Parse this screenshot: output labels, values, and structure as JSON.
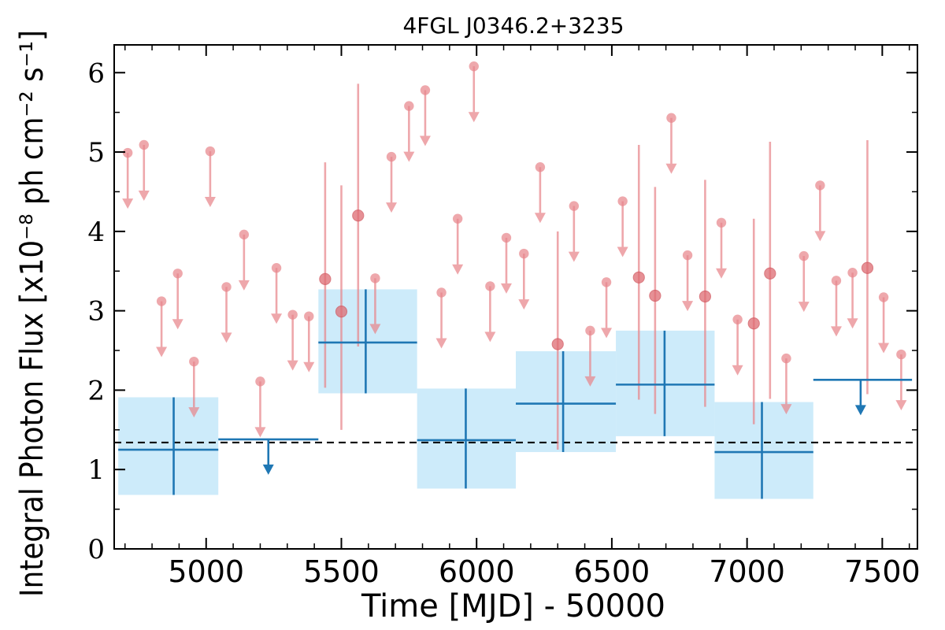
{
  "chart_data": {
    "type": "scatter",
    "title": "4FGL J0346.2+3235",
    "xlabel": "Time [MJD] - 50000",
    "ylabel": "Integral Photon Flux [x10⁻⁸ ph cm⁻² s⁻¹]",
    "xlim": [
      4660,
      7630
    ],
    "ylim": [
      0,
      6.35
    ],
    "xticks": [
      5000,
      5500,
      6000,
      6500,
      7000,
      7500
    ],
    "yticks": [
      0,
      1,
      2,
      3,
      4,
      5,
      6
    ],
    "reference_line": {
      "y": 1.34,
      "style": "dashed",
      "color": "#000000"
    },
    "colors": {
      "long_bins": "#1f77b4",
      "short_bins": "#e8868c",
      "band": "#cdebfa"
    },
    "long_bin_detections": [
      {
        "x0": 4675,
        "x1": 5045,
        "x": 4880,
        "y": 1.25,
        "ylo": 0.68,
        "yhi": 1.91
      },
      {
        "x0": 5415,
        "x1": 5780,
        "x": 5590,
        "y": 2.6,
        "ylo": 1.96,
        "yhi": 3.27
      },
      {
        "x0": 5780,
        "x1": 6145,
        "x": 5960,
        "y": 1.37,
        "ylo": 0.76,
        "yhi": 2.02
      },
      {
        "x0": 6145,
        "x1": 6515,
        "x": 6320,
        "y": 1.83,
        "ylo": 1.22,
        "yhi": 2.49
      },
      {
        "x0": 6515,
        "x1": 6880,
        "x": 6695,
        "y": 2.07,
        "ylo": 1.42,
        "yhi": 2.75
      },
      {
        "x0": 6880,
        "x1": 7245,
        "x": 7055,
        "y": 1.22,
        "ylo": 0.63,
        "yhi": 1.85
      }
    ],
    "long_bin_upper_limits": [
      {
        "x0": 5045,
        "x1": 5415,
        "x": 5230,
        "y": 1.38
      },
      {
        "x0": 7245,
        "x1": 7610,
        "x": 7420,
        "y": 2.13
      }
    ],
    "short_bin_detections": [
      {
        "x": 5440,
        "y": 3.4,
        "ylo": 2.03,
        "yhi": 4.87
      },
      {
        "x": 5500,
        "y": 2.99,
        "ylo": 1.5,
        "yhi": 4.58
      },
      {
        "x": 5562,
        "y": 4.2,
        "ylo": 2.55,
        "yhi": 5.86
      },
      {
        "x": 6300,
        "y": 2.58,
        "ylo": 1.25,
        "yhi": 4.0
      },
      {
        "x": 6600,
        "y": 3.42,
        "ylo": 1.88,
        "yhi": 5.09
      },
      {
        "x": 6660,
        "y": 3.19,
        "ylo": 1.7,
        "yhi": 4.56
      },
      {
        "x": 6845,
        "y": 3.18,
        "ylo": 1.79,
        "yhi": 4.65
      },
      {
        "x": 7025,
        "y": 2.84,
        "ylo": 1.57,
        "yhi": 4.16
      },
      {
        "x": 7085,
        "y": 3.47,
        "ylo": 1.89,
        "yhi": 5.13
      },
      {
        "x": 7445,
        "y": 3.54,
        "ylo": 1.95,
        "yhi": 5.15
      }
    ],
    "short_bin_upper_limits": [
      {
        "x": 4710,
        "y": 4.99
      },
      {
        "x": 4770,
        "y": 5.09
      },
      {
        "x": 4835,
        "y": 3.12
      },
      {
        "x": 4895,
        "y": 3.47
      },
      {
        "x": 4955,
        "y": 2.36
      },
      {
        "x": 5015,
        "y": 5.01
      },
      {
        "x": 5075,
        "y": 3.3
      },
      {
        "x": 5140,
        "y": 3.96
      },
      {
        "x": 5200,
        "y": 2.11
      },
      {
        "x": 5260,
        "y": 3.54
      },
      {
        "x": 5320,
        "y": 2.95
      },
      {
        "x": 5380,
        "y": 2.93
      },
      {
        "x": 5625,
        "y": 3.41
      },
      {
        "x": 5685,
        "y": 4.94
      },
      {
        "x": 5750,
        "y": 5.58
      },
      {
        "x": 5810,
        "y": 5.78
      },
      {
        "x": 5870,
        "y": 3.23
      },
      {
        "x": 5930,
        "y": 4.16
      },
      {
        "x": 5990,
        "y": 6.08
      },
      {
        "x": 6050,
        "y": 3.31
      },
      {
        "x": 6110,
        "y": 3.92
      },
      {
        "x": 6175,
        "y": 3.72
      },
      {
        "x": 6235,
        "y": 4.81
      },
      {
        "x": 6360,
        "y": 4.32
      },
      {
        "x": 6420,
        "y": 2.75
      },
      {
        "x": 6480,
        "y": 3.36
      },
      {
        "x": 6540,
        "y": 4.38
      },
      {
        "x": 6720,
        "y": 5.43
      },
      {
        "x": 6780,
        "y": 3.7
      },
      {
        "x": 6905,
        "y": 4.11
      },
      {
        "x": 6965,
        "y": 2.89
      },
      {
        "x": 7145,
        "y": 2.4
      },
      {
        "x": 7210,
        "y": 3.69
      },
      {
        "x": 7270,
        "y": 4.58
      },
      {
        "x": 7330,
        "y": 3.38
      },
      {
        "x": 7390,
        "y": 3.48
      },
      {
        "x": 7505,
        "y": 3.17
      },
      {
        "x": 7570,
        "y": 2.45
      }
    ]
  }
}
